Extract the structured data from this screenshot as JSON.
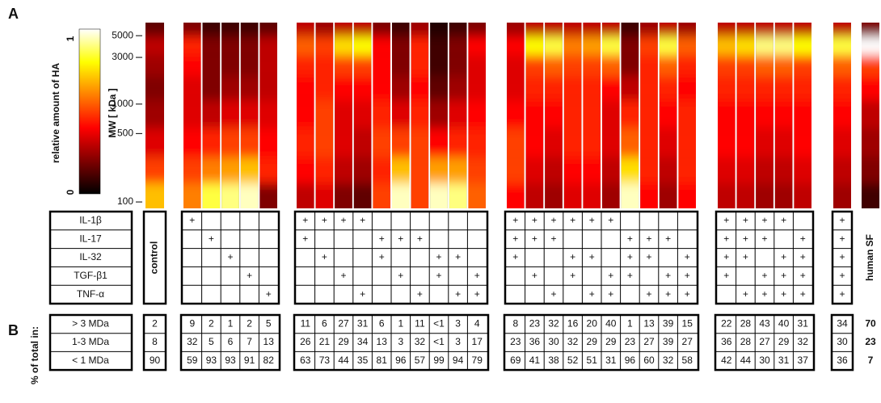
{
  "panel_a_label": "A",
  "panel_b_label": "B",
  "colorbar": {
    "label": "relative amount of HA",
    "ticks": [
      0,
      1
    ]
  },
  "mw_axis": {
    "label": "MW [ kDa ]",
    "log": true,
    "ylim": [
      86,
      6800
    ],
    "yticks": [
      100,
      500,
      1000,
      3000,
      5000
    ]
  },
  "mw_samples": [
    6000,
    4000,
    2500,
    1500,
    800,
    400,
    200,
    120
  ],
  "cytokines": [
    "IL-1β",
    "IL-17",
    "IL-32",
    "TGF-β1",
    "TNF-α"
  ],
  "size_classes": [
    "> 3 MDa",
    "1-3 MDa",
    "< 1 MDa"
  ],
  "percent_label": "% of total in:",
  "plus_mark": "+",
  "groups": [
    {
      "label": "control",
      "lanes": [
        {
          "intensity": [
            0.15,
            0.3,
            0.25,
            0.2,
            0.25,
            0.35,
            0.5,
            0.7
          ]
        }
      ],
      "percent": [
        [
          2
        ],
        [
          8
        ],
        [
          90
        ]
      ]
    },
    {
      "lanes": [
        {
          "intensity": [
            0.2,
            0.45,
            0.4,
            0.35,
            0.35,
            0.4,
            0.5,
            0.6
          ]
        },
        {
          "intensity": [
            0.1,
            0.2,
            0.2,
            0.2,
            0.3,
            0.45,
            0.6,
            0.85
          ]
        },
        {
          "intensity": [
            0.1,
            0.2,
            0.2,
            0.25,
            0.35,
            0.5,
            0.65,
            0.9
          ]
        },
        {
          "intensity": [
            0.1,
            0.2,
            0.2,
            0.25,
            0.35,
            0.5,
            0.7,
            0.95
          ]
        },
        {
          "intensity": [
            0.15,
            0.3,
            0.3,
            0.3,
            0.35,
            0.4,
            0.45,
            0.2
          ]
        }
      ],
      "treatment": [
        [
          true,
          false,
          false,
          false,
          false
        ],
        [
          false,
          true,
          false,
          false,
          false
        ],
        [
          false,
          false,
          true,
          false,
          false
        ],
        [
          false,
          false,
          false,
          true,
          false
        ],
        [
          false,
          false,
          false,
          false,
          true
        ]
      ],
      "percent": [
        [
          9,
          2,
          1,
          2,
          5
        ],
        [
          32,
          5,
          6,
          7,
          13
        ],
        [
          59,
          93,
          93,
          91,
          82
        ]
      ]
    },
    {
      "lanes": [
        {
          "intensity": [
            0.3,
            0.55,
            0.45,
            0.4,
            0.4,
            0.45,
            0.4,
            0.3
          ]
        },
        {
          "intensity": [
            0.25,
            0.5,
            0.45,
            0.45,
            0.5,
            0.5,
            0.45,
            0.35
          ]
        },
        {
          "intensity": [
            0.3,
            0.75,
            0.5,
            0.4,
            0.35,
            0.35,
            0.3,
            0.2
          ]
        },
        {
          "intensity": [
            0.3,
            0.8,
            0.5,
            0.4,
            0.35,
            0.3,
            0.25,
            0.15
          ]
        },
        {
          "intensity": [
            0.2,
            0.4,
            0.4,
            0.4,
            0.45,
            0.5,
            0.45,
            0.5
          ]
        },
        {
          "intensity": [
            0.1,
            0.2,
            0.2,
            0.25,
            0.35,
            0.5,
            0.7,
            0.95
          ]
        },
        {
          "intensity": [
            0.25,
            0.45,
            0.45,
            0.4,
            0.45,
            0.5,
            0.5,
            0.5
          ]
        },
        {
          "intensity": [
            0.05,
            0.1,
            0.1,
            0.15,
            0.25,
            0.4,
            0.65,
            0.95
          ]
        },
        {
          "intensity": [
            0.1,
            0.2,
            0.2,
            0.25,
            0.35,
            0.45,
            0.65,
            0.9
          ]
        },
        {
          "intensity": [
            0.2,
            0.4,
            0.35,
            0.35,
            0.4,
            0.45,
            0.5,
            0.55
          ]
        }
      ],
      "treatment": [
        [
          true,
          true,
          true,
          true,
          false,
          false,
          false,
          false,
          false,
          false
        ],
        [
          true,
          false,
          false,
          false,
          true,
          true,
          true,
          false,
          false,
          false
        ],
        [
          false,
          true,
          false,
          false,
          true,
          false,
          false,
          true,
          true,
          false
        ],
        [
          false,
          false,
          true,
          false,
          false,
          true,
          false,
          true,
          false,
          true
        ],
        [
          false,
          false,
          false,
          true,
          false,
          false,
          true,
          false,
          true,
          true
        ]
      ],
      "percent": [
        [
          11,
          6,
          27,
          31,
          6,
          1,
          11,
          "<1",
          3,
          4
        ],
        [
          26,
          21,
          29,
          34,
          13,
          3,
          32,
          "<1",
          3,
          17
        ],
        [
          63,
          73,
          44,
          35,
          81,
          96,
          57,
          99,
          94,
          79
        ]
      ]
    },
    {
      "lanes": [
        {
          "intensity": [
            0.25,
            0.4,
            0.35,
            0.35,
            0.4,
            0.5,
            0.5,
            0.4
          ]
        },
        {
          "intensity": [
            0.3,
            0.8,
            0.5,
            0.45,
            0.4,
            0.4,
            0.35,
            0.3
          ]
        },
        {
          "intensity": [
            0.3,
            0.85,
            0.55,
            0.45,
            0.4,
            0.35,
            0.3,
            0.25
          ]
        },
        {
          "intensity": [
            0.3,
            0.6,
            0.5,
            0.45,
            0.45,
            0.45,
            0.4,
            0.35
          ]
        },
        {
          "intensity": [
            0.3,
            0.65,
            0.5,
            0.45,
            0.45,
            0.45,
            0.4,
            0.35
          ]
        },
        {
          "intensity": [
            0.3,
            0.85,
            0.55,
            0.4,
            0.35,
            0.35,
            0.3,
            0.25
          ]
        },
        {
          "intensity": [
            0.1,
            0.2,
            0.2,
            0.3,
            0.45,
            0.55,
            0.75,
            0.95
          ]
        },
        {
          "intensity": [
            0.25,
            0.5,
            0.45,
            0.45,
            0.45,
            0.45,
            0.45,
            0.4
          ]
        },
        {
          "intensity": [
            0.3,
            0.85,
            0.55,
            0.45,
            0.4,
            0.35,
            0.3,
            0.25
          ]
        },
        {
          "intensity": [
            0.25,
            0.55,
            0.45,
            0.4,
            0.45,
            0.45,
            0.45,
            0.4
          ]
        }
      ],
      "treatment": [
        [
          true,
          true,
          true,
          true,
          true,
          true,
          false,
          false,
          false,
          false
        ],
        [
          true,
          true,
          true,
          false,
          false,
          false,
          true,
          true,
          true,
          false
        ],
        [
          true,
          false,
          false,
          true,
          true,
          false,
          true,
          true,
          false,
          true
        ],
        [
          false,
          true,
          false,
          true,
          false,
          true,
          true,
          false,
          true,
          true
        ],
        [
          false,
          false,
          true,
          false,
          true,
          true,
          false,
          true,
          true,
          true
        ]
      ],
      "percent": [
        [
          8,
          23,
          32,
          16,
          20,
          40,
          1,
          13,
          39,
          15
        ],
        [
          23,
          36,
          30,
          32,
          29,
          29,
          23,
          27,
          39,
          27
        ],
        [
          69,
          41,
          38,
          52,
          51,
          31,
          96,
          60,
          32,
          58
        ]
      ]
    },
    {
      "lanes": [
        {
          "intensity": [
            0.3,
            0.7,
            0.5,
            0.45,
            0.4,
            0.4,
            0.35,
            0.3
          ]
        },
        {
          "intensity": [
            0.3,
            0.75,
            0.5,
            0.45,
            0.4,
            0.4,
            0.35,
            0.3
          ]
        },
        {
          "intensity": [
            0.3,
            0.9,
            0.55,
            0.45,
            0.4,
            0.35,
            0.3,
            0.25
          ]
        },
        {
          "intensity": [
            0.3,
            0.9,
            0.55,
            0.45,
            0.4,
            0.35,
            0.3,
            0.25
          ]
        },
        {
          "intensity": [
            0.3,
            0.8,
            0.5,
            0.45,
            0.4,
            0.4,
            0.35,
            0.3
          ]
        }
      ],
      "treatment": [
        [
          true,
          true,
          true,
          true,
          false
        ],
        [
          true,
          true,
          true,
          false,
          true
        ],
        [
          true,
          true,
          false,
          true,
          true
        ],
        [
          true,
          false,
          true,
          true,
          true
        ],
        [
          false,
          true,
          true,
          true,
          true
        ]
      ],
      "percent": [
        [
          22,
          28,
          43,
          40,
          31
        ],
        [
          36,
          28,
          27,
          29,
          32
        ],
        [
          42,
          44,
          30,
          31,
          37
        ]
      ]
    },
    {
      "lanes": [
        {
          "intensity": [
            0.3,
            0.85,
            0.55,
            0.45,
            0.4,
            0.35,
            0.3,
            0.25
          ]
        }
      ],
      "treatment": [
        [
          true
        ],
        [
          true
        ],
        [
          true
        ],
        [
          true
        ],
        [
          true
        ]
      ],
      "percent": [
        [
          34
        ],
        [
          30
        ],
        [
          36
        ]
      ]
    },
    {
      "label": "human SF",
      "lanes": [
        {
          "intensity": [
            0.2,
            1.0,
            0.5,
            0.4,
            0.3,
            0.25,
            0.2,
            0.1
          ]
        }
      ],
      "percent": [
        [
          70
        ],
        [
          23
        ],
        [
          7
        ]
      ]
    }
  ]
}
